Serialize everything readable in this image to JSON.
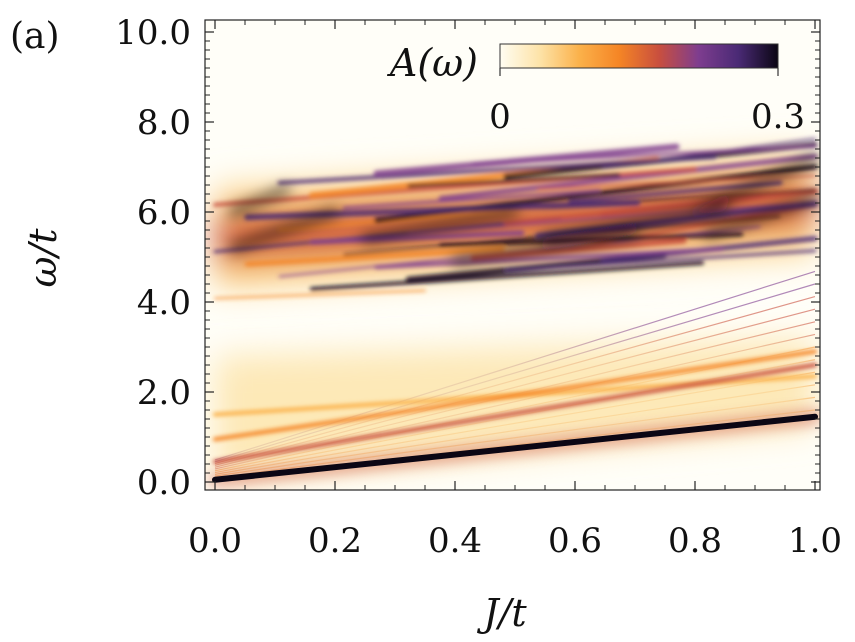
{
  "chart_data": {
    "type": "heatmap",
    "panel_label": "(a)",
    "xlabel": "J/t",
    "ylabel": "ω/t",
    "xlim": [
      0.0,
      1.0
    ],
    "ylim": [
      0.0,
      10.0
    ],
    "x_ticks": [
      "0.0",
      "0.2",
      "0.4",
      "0.6",
      "0.8",
      "1.0"
    ],
    "y_ticks": [
      "0.0",
      "2.0",
      "4.0",
      "6.0",
      "8.0",
      "10.0"
    ],
    "colorbar": {
      "label": "A(ω)",
      "min_label": "0",
      "max_label": "0.3",
      "range": [
        0,
        0.3
      ],
      "colormap": [
        "#fffdf2",
        "#fde3a8",
        "#fbb14a",
        "#f58525",
        "#c94f3e",
        "#7e3d8f",
        "#4a2a75",
        "#0b0614"
      ]
    },
    "bands": [
      {
        "name": "lowest-band",
        "omega_at_0": 0.05,
        "omega_at_1": 1.45,
        "intensity": 0.3
      },
      {
        "name": "low-branch-1",
        "omega_at_0": 0.45,
        "omega_at_1": 2.6,
        "intensity": 0.18
      },
      {
        "name": "low-branch-2",
        "omega_at_0": 0.95,
        "omega_at_1": 2.9,
        "intensity": 0.14
      },
      {
        "name": "low-branch-3",
        "omega_at_0": 1.5,
        "omega_at_1": 2.35,
        "intensity": 0.1
      },
      {
        "name": "upper-continuum",
        "omega_center_at_0": 5.4,
        "omega_center_at_1": 6.2,
        "width": 2.4,
        "intensity": 0.2
      }
    ]
  }
}
